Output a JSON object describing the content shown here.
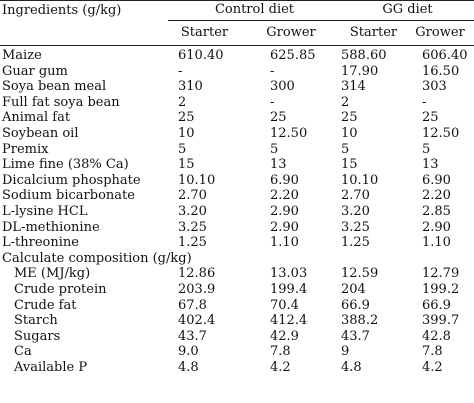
{
  "header": {
    "ingredients_label": "Ingredients (g/kg)",
    "control_diet": "Control diet",
    "gg_diet": "GG diet",
    "starter_1": "Starter",
    "grower_1": "Grower",
    "starter_2": "Starter",
    "grower_2": "Grower"
  },
  "rows": [
    {
      "label": "Maize",
      "v": [
        "610.40",
        "625.85",
        "588.60",
        "606.40"
      ]
    },
    {
      "label": "Guar gum",
      "v": [
        "-",
        "-",
        "17.90",
        "16.50"
      ]
    },
    {
      "label": "Soya bean meal",
      "v": [
        "310",
        "300",
        "314",
        "303"
      ]
    },
    {
      "label": "Full fat soya bean",
      "v": [
        "2",
        "-",
        "2",
        "-"
      ]
    },
    {
      "label": "Animal fat",
      "v": [
        "25",
        "25",
        "25",
        "25"
      ]
    },
    {
      "label": "Soybean oil",
      "v": [
        "10",
        "12.50",
        "10",
        "12.50"
      ]
    },
    {
      "label": "Premix",
      "v": [
        "5",
        "5",
        "5",
        "5"
      ]
    },
    {
      "label": "Lime fine (38% Ca)",
      "v": [
        "15",
        "13",
        "15",
        "13"
      ]
    },
    {
      "label": "Dicalcium phosphate",
      "v": [
        "10.10",
        "6.90",
        "10.10",
        "6.90"
      ]
    },
    {
      "label": "Sodium bicarbonate",
      "v": [
        "2.70",
        "2.20",
        "2.70",
        "2.20"
      ]
    },
    {
      "label": "L-lysine HCL",
      "v": [
        "3.20",
        "2.90",
        "3.20",
        "2.85"
      ]
    },
    {
      "label": "DL-methionine",
      "v": [
        "3.25",
        "2.90",
        "3.25",
        "2.90"
      ]
    },
    {
      "label": "L-threonine",
      "v": [
        "1.25",
        "1.10",
        "1.25",
        "1.10"
      ]
    }
  ],
  "composition_header": "Calculate composition (g/kg)",
  "composition_rows": [
    {
      "label": "ME (MJ/kg)",
      "v": [
        "12.86",
        "13.03",
        "12.59",
        "12.79"
      ]
    },
    {
      "label": "Crude protein",
      "v": [
        "203.9",
        "199.4",
        "204",
        "199.2"
      ]
    },
    {
      "label": "Crude fat",
      "v": [
        "67.8",
        "70.4",
        "66.9",
        "66.9"
      ]
    },
    {
      "label": "Starch",
      "v": [
        "402.4",
        "412.4",
        "388.2",
        "399.7"
      ]
    },
    {
      "label": "Sugars",
      "v": [
        "43.7",
        "42.9",
        "43.7",
        "42.8"
      ]
    },
    {
      "label": "Ca",
      "v": [
        "9.0",
        "7.8",
        "9",
        "7.8"
      ]
    },
    {
      "label": "Available P",
      "v": [
        "4.8",
        "4.2",
        "4.8",
        "4.2"
      ]
    }
  ]
}
